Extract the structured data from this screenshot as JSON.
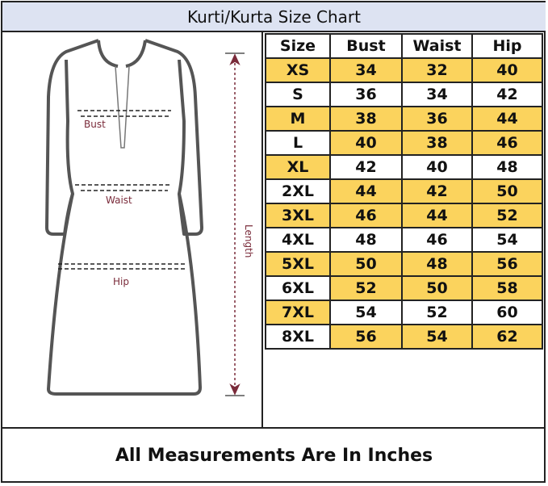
{
  "title": "Kurti/Kurta Size Chart",
  "figure": {
    "labels": {
      "bust": "Bust",
      "waist": "Waist",
      "hip": "Hip",
      "length": "Length"
    }
  },
  "table": {
    "headers": [
      "Size",
      "Bust",
      "Waist",
      "Hip"
    ],
    "rows": [
      {
        "size": "XS",
        "bust": "34",
        "waist": "32",
        "hip": "40",
        "size_yellow": true,
        "values_yellow": true
      },
      {
        "size": "S",
        "bust": "36",
        "waist": "34",
        "hip": "42",
        "size_yellow": false,
        "values_yellow": false
      },
      {
        "size": "M",
        "bust": "38",
        "waist": "36",
        "hip": "44",
        "size_yellow": true,
        "values_yellow": true
      },
      {
        "size": "L",
        "bust": "40",
        "waist": "38",
        "hip": "46",
        "size_yellow": false,
        "values_yellow": true
      },
      {
        "size": "XL",
        "bust": "42",
        "waist": "40",
        "hip": "48",
        "size_yellow": true,
        "values_yellow": false
      },
      {
        "size": "2XL",
        "bust": "44",
        "waist": "42",
        "hip": "50",
        "size_yellow": false,
        "values_yellow": true
      },
      {
        "size": "3XL",
        "bust": "46",
        "waist": "44",
        "hip": "52",
        "size_yellow": true,
        "values_yellow": true
      },
      {
        "size": "4XL",
        "bust": "48",
        "waist": "46",
        "hip": "54",
        "size_yellow": false,
        "values_yellow": false
      },
      {
        "size": "5XL",
        "bust": "50",
        "waist": "48",
        "hip": "56",
        "size_yellow": true,
        "values_yellow": true
      },
      {
        "size": "6XL",
        "bust": "52",
        "waist": "50",
        "hip": "58",
        "size_yellow": false,
        "values_yellow": true
      },
      {
        "size": "7XL",
        "bust": "54",
        "waist": "52",
        "hip": "60",
        "size_yellow": true,
        "values_yellow": false
      },
      {
        "size": "8XL",
        "bust": "56",
        "waist": "54",
        "hip": "62",
        "size_yellow": false,
        "values_yellow": true
      }
    ]
  },
  "footer": "All Measurements Are In Inches",
  "colors": {
    "highlight": "#fbd35d",
    "title_bg": "#dde3f2",
    "label": "#7a2b3a"
  }
}
